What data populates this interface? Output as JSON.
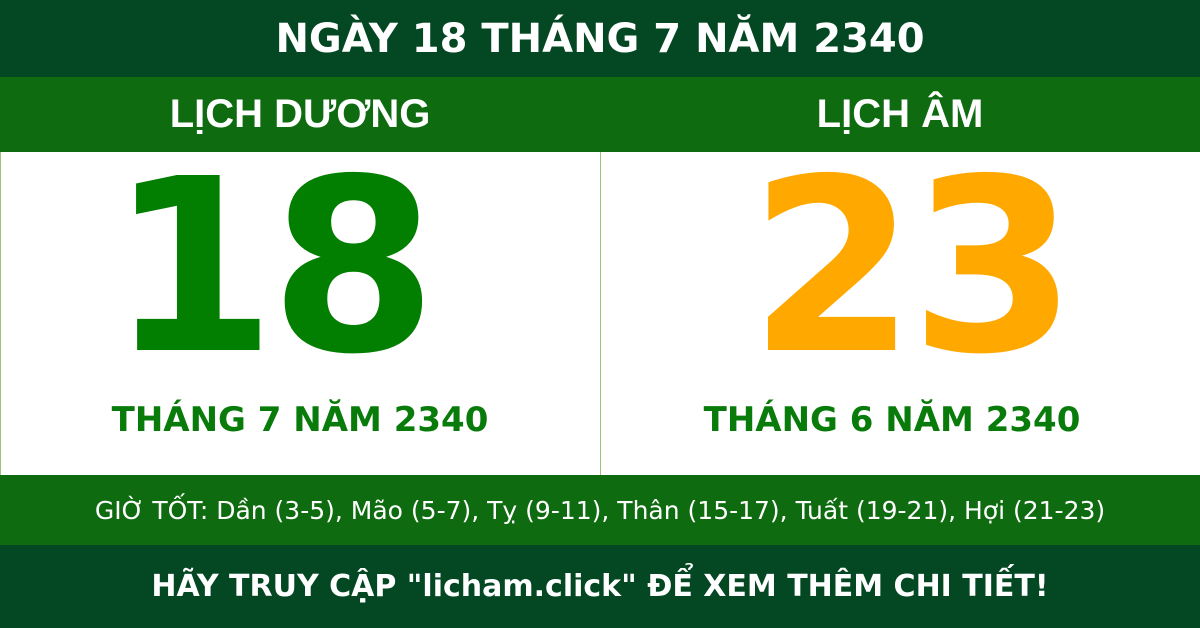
{
  "title": "NGÀY 18 THÁNG 7 NĂM 2340",
  "solar": {
    "label": "LỊCH DƯƠNG",
    "day": "18",
    "month_year": "THÁNG 7 NĂM 2340"
  },
  "lunar": {
    "label": "LỊCH ÂM",
    "day": "23",
    "month_year": "THÁNG 6 NĂM 2340"
  },
  "good_hours": "GIỜ TỐT: Dần (3-5), Mão (5-7), Tỵ (9-11), Thân (15-17), Tuất (19-21), Hợi (21-23)",
  "footer": "HÃY TRUY CẬP \"licham.click\" ĐỂ XEM THÊM CHI TIẾT!",
  "colors": {
    "dark_green": "#034823",
    "green": "#0f6b10",
    "solar_day": "#027f00",
    "lunar_day": "#ffa800"
  }
}
